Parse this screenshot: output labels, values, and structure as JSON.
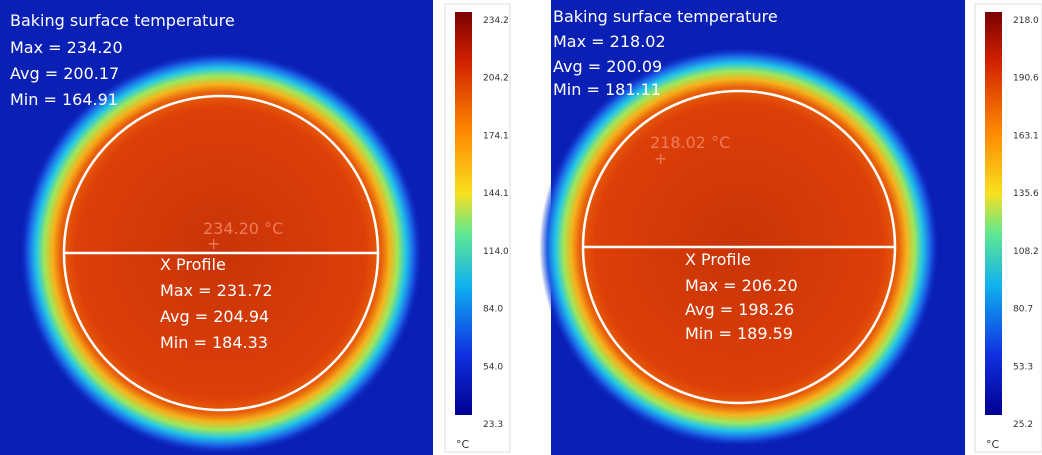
{
  "panels": [
    {
      "title": "Baking surface temperature",
      "max": "Max = 234.20",
      "avg": "Avg = 200.17",
      "min": "Min = 164.91",
      "hotspot": "234.20 °C",
      "profile": {
        "title": "X Profile",
        "max": "Max = 231.72",
        "avg": "Avg = 204.94",
        "min": "Min = 184.33"
      },
      "colorbar": {
        "ticks": [
          "234.2",
          "204.2",
          "174.1",
          "144.1",
          "114.0",
          "84.0",
          "54.0",
          "23.3"
        ],
        "unit": "°C"
      }
    },
    {
      "title": "Baking surface temperature",
      "max": "Max = 218.02",
      "avg": "Avg = 200.09",
      "min": "Min = 181.11",
      "hotspot": "218.02 °C",
      "profile": {
        "title": "X Profile",
        "max": "Max = 206.20",
        "avg": "Avg = 198.26",
        "min": "Min = 189.59"
      },
      "colorbar": {
        "ticks": [
          "218.0",
          "190.6",
          "163.1",
          "135.6",
          "108.2",
          "80.7",
          "53.3",
          "25.2"
        ],
        "unit": "°C"
      }
    }
  ]
}
